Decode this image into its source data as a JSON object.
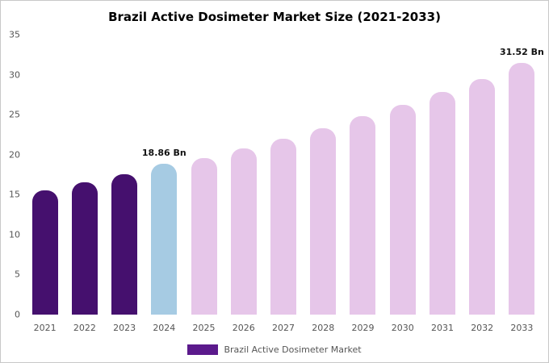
{
  "chart_data": {
    "type": "bar",
    "title": "Brazil Active Dosimeter Market Size (2021-2033)",
    "categories": [
      "2021",
      "2022",
      "2023",
      "2024",
      "2025",
      "2026",
      "2027",
      "2028",
      "2029",
      "2030",
      "2031",
      "2032",
      "2033"
    ],
    "values": [
      15.5,
      16.5,
      17.6,
      18.86,
      19.6,
      20.8,
      22.0,
      23.3,
      24.8,
      26.2,
      27.8,
      29.5,
      31.52
    ],
    "bar_colors": [
      "#45106e",
      "#45106e",
      "#45106e",
      "#a6cbe3",
      "#e6c6e9",
      "#e6c6e9",
      "#e6c6e9",
      "#e6c6e9",
      "#e6c6e9",
      "#e6c6e9",
      "#e6c6e9",
      "#e6c6e9",
      "#e6c6e9"
    ],
    "annotations": [
      {
        "index": 3,
        "label": "18.86 Bn"
      },
      {
        "index": 12,
        "label": "31.52 Bn"
      }
    ],
    "ylim": [
      0,
      35
    ],
    "yticks": [
      0,
      5,
      10,
      15,
      20,
      25,
      30,
      35
    ],
    "grid": false,
    "legend": [
      {
        "label": "Brazil Active Dosimeter Market",
        "color": "#5b1a8c"
      }
    ],
    "legend_position": "bottom-center",
    "xlabel": "",
    "ylabel": ""
  }
}
